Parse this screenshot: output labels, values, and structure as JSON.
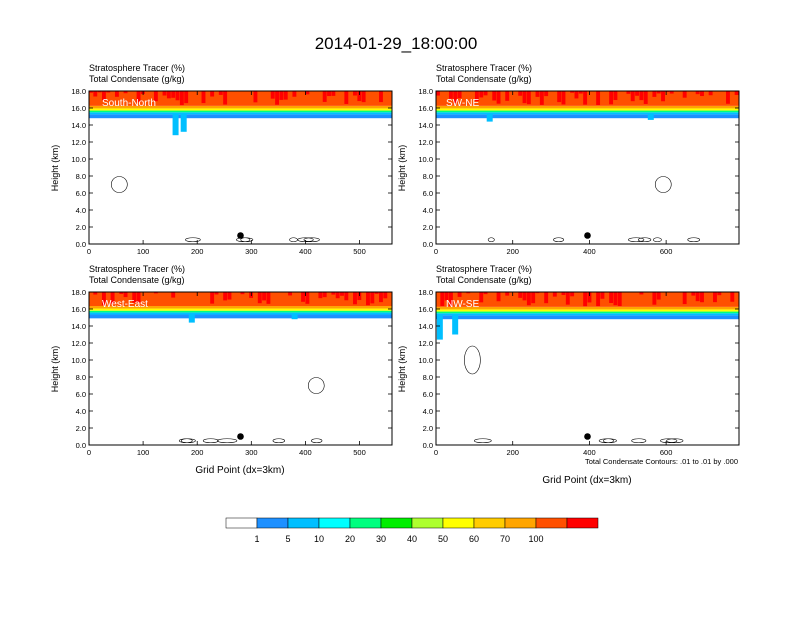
{
  "title": "2014-01-29_18:00:00",
  "colors": {
    "levels": [
      "#ffffff",
      "#1e90ff",
      "#00bfff",
      "#00ffff",
      "#00ff7f",
      "#00ee00",
      "#adff2f",
      "#ffff00",
      "#ffcc00",
      "#ffa500",
      "#ff5000",
      "#ff0000"
    ]
  },
  "legend": {
    "labels": [
      "1",
      "5",
      "10",
      "20",
      "30",
      "40",
      "50",
      "60",
      "70",
      "100"
    ]
  },
  "chart_data": [
    {
      "type": "heatmap",
      "panel": "South-North",
      "header": [
        "Stratosphere Tracer   (%)",
        "Total Condensate   (g/kg)"
      ],
      "ylabel": "Height (km)",
      "xlabel": "",
      "xlim": [
        0,
        560
      ],
      "ylim": [
        0,
        18
      ],
      "xticks": [
        "0",
        "100",
        "200",
        "300",
        "400",
        "500"
      ],
      "yticks": [
        "0.0",
        "2.0",
        "4.0",
        "6.0",
        "8.0",
        "10.0",
        "12.0",
        "14.0",
        "16.0",
        "18.0"
      ],
      "tropopause_km": 15.7,
      "marker_x": 280,
      "note": ""
    },
    {
      "type": "heatmap",
      "panel": "SW-NE",
      "header": [
        "Stratosphere Tracer   (%)",
        "Total Condensate   (g/kg)"
      ],
      "ylabel": "Height (km)",
      "xlabel": "",
      "xlim": [
        0,
        790
      ],
      "ylim": [
        0,
        18
      ],
      "xticks": [
        "0",
        "200",
        "400",
        "600"
      ],
      "yticks": [
        "0.0",
        "2.0",
        "4.0",
        "6.0",
        "8.0",
        "10.0",
        "12.0",
        "14.0",
        "16.0",
        "18.0"
      ],
      "tropopause_km": 15.7,
      "marker_x": 395,
      "note": ""
    },
    {
      "type": "heatmap",
      "panel": "West-East",
      "header": [
        "Stratosphere Tracer   (%)",
        "Total Condensate   (g/kg)"
      ],
      "ylabel": "Height (km)",
      "xlabel": "Grid Point (dx=3km)",
      "xlim": [
        0,
        560
      ],
      "ylim": [
        0,
        18
      ],
      "xticks": [
        "0",
        "100",
        "200",
        "300",
        "400",
        "500"
      ],
      "yticks": [
        "0.0",
        "2.0",
        "4.0",
        "6.0",
        "8.0",
        "10.0",
        "12.0",
        "14.0",
        "16.0",
        "18.0"
      ],
      "tropopause_km": 15.8,
      "marker_x": 280,
      "note": ""
    },
    {
      "type": "heatmap",
      "panel": "NW-SE",
      "header": [
        "Stratosphere Tracer   (%)",
        "Total Condensate   (g/kg)"
      ],
      "ylabel": "Height (km)",
      "xlabel": "Grid Point (dx=3km)",
      "xlim": [
        0,
        790
      ],
      "ylim": [
        0,
        18
      ],
      "xticks": [
        "0",
        "200",
        "400",
        "600"
      ],
      "yticks": [
        "0.0",
        "2.0",
        "4.0",
        "6.0",
        "8.0",
        "10.0",
        "12.0",
        "14.0",
        "16.0",
        "18.0"
      ],
      "tropopause_km": 15.7,
      "marker_x": 395,
      "note": "Total Condensate Contours: .01 to .01 by .000"
    }
  ]
}
